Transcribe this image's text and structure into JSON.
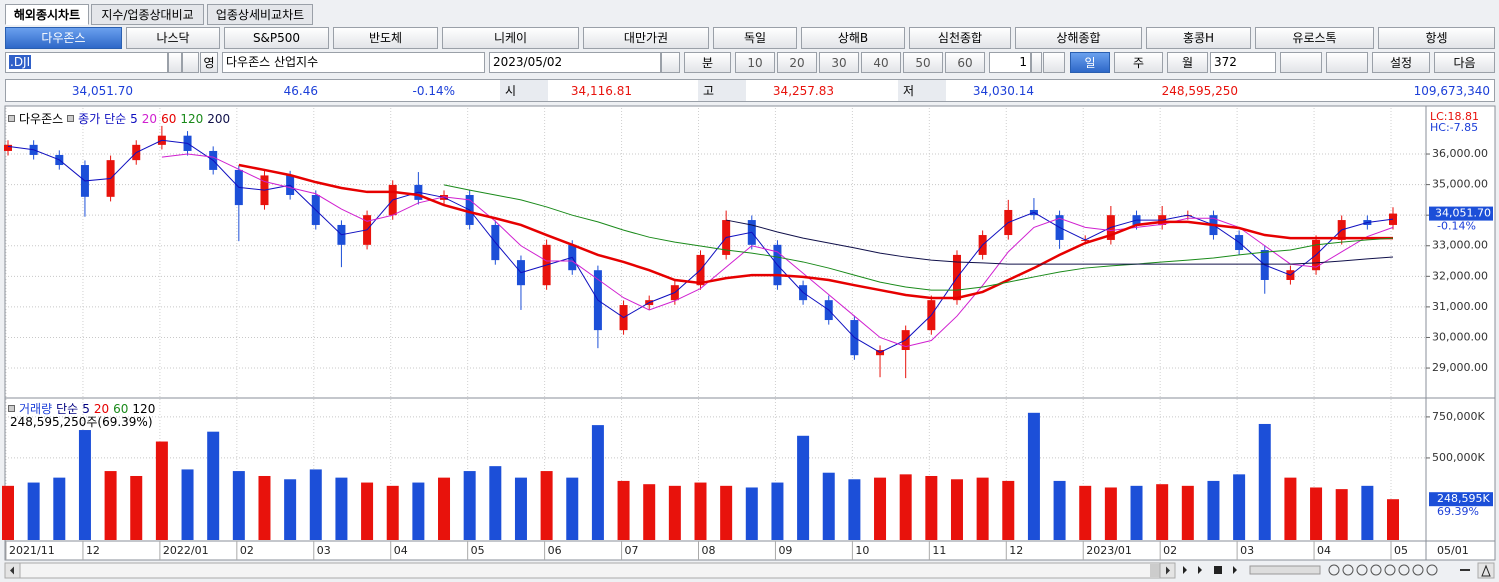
{
  "tabs": [
    "해외종시차트",
    "지수/업종상대비교",
    "업종상세비교차트"
  ],
  "markets": [
    "다우존스",
    "나스닥",
    "S&P500",
    "반도체",
    "니케이",
    "대만가권",
    "독일",
    "상해B",
    "심천종합",
    "상해종합",
    "홍콩H",
    "유로스톡",
    "항셍"
  ],
  "toolbar": {
    "symbol": ".DJI",
    "lang_button": "영",
    "symbol_name": "다우존스 산업지수",
    "date": "2023/05/02",
    "minute": "분",
    "minute_periods": [
      "10",
      "20",
      "30",
      "40",
      "50",
      "60"
    ],
    "unit_count": "1",
    "periods": [
      "일",
      "주",
      "월"
    ],
    "bar_count": "372",
    "settings": "설정",
    "next": "다음"
  },
  "quote": {
    "last": "34,051.70",
    "change": "46.46",
    "change_pct": "-0.14%",
    "open_label": "시",
    "open": "34,116.81",
    "high_label": "고",
    "high": "34,257.83",
    "low_label": "저",
    "low": "34,030.14",
    "volume": "248,595,250",
    "amount": "109,673,340"
  },
  "chart_data": [
    {
      "type": "candlestick",
      "name": "다우존스",
      "indicator_label": "종가 단순",
      "categories": [
        "2021/11",
        null,
        null,
        "12",
        null,
        null,
        "2022/01",
        null,
        null,
        "02",
        null,
        null,
        "03",
        null,
        null,
        "04",
        null,
        null,
        "05",
        null,
        null,
        "06",
        null,
        null,
        "07",
        null,
        null,
        "08",
        null,
        null,
        "09",
        null,
        null,
        "10",
        null,
        null,
        "11",
        null,
        null,
        "12",
        null,
        null,
        "2023/01",
        null,
        null,
        "02",
        null,
        null,
        "03",
        null,
        null,
        "04",
        null,
        null,
        "05"
      ],
      "extra_x_label": "05/01",
      "open": [
        36100,
        36300,
        35970,
        35640,
        34600,
        35800,
        36300,
        36600,
        36100,
        35480,
        34330,
        35300,
        34660,
        33680,
        33030,
        34000,
        34990,
        34500,
        34660,
        33680,
        32530,
        31710,
        33030,
        32200,
        30240,
        31060,
        31220,
        31710,
        32700,
        33840,
        33030,
        31710,
        31220,
        30570,
        29420,
        29590,
        30240,
        31220,
        32700,
        33350,
        34170,
        34000,
        33190,
        33190,
        34000,
        33680,
        34000,
        34000,
        33350,
        32860,
        31880,
        32200,
        33190,
        33840,
        33680
      ],
      "high": [
        36450,
        36450,
        36120,
        35790,
        35950,
        36450,
        36920,
        36750,
        36250,
        35630,
        35450,
        35450,
        34810,
        33830,
        34150,
        35140,
        35410,
        34810,
        34810,
        33830,
        32680,
        33200,
        33180,
        32350,
        31210,
        31370,
        31860,
        32850,
        34150,
        33990,
        33180,
        31860,
        31370,
        30720,
        29740,
        30390,
        31370,
        32850,
        33500,
        34500,
        34560,
        34150,
        33340,
        34300,
        34150,
        34300,
        34150,
        34150,
        33500,
        33010,
        32350,
        33340,
        33990,
        33990,
        34257.83
      ],
      "low": [
        35950,
        35820,
        35490,
        33950,
        34450,
        35650,
        36150,
        35950,
        35330,
        33150,
        34180,
        34510,
        33530,
        32300,
        32880,
        33850,
        34350,
        34350,
        33530,
        32380,
        30900,
        31560,
        32050,
        29650,
        30090,
        30910,
        31070,
        31560,
        32550,
        32880,
        31560,
        31070,
        30420,
        29270,
        28700,
        28670,
        30090,
        31070,
        32550,
        33200,
        33850,
        32900,
        33040,
        33040,
        33530,
        33530,
        33850,
        33200,
        32710,
        31430,
        31730,
        32050,
        33040,
        33530,
        33530
      ],
      "close": [
        36300,
        35970,
        35640,
        34600,
        35800,
        36300,
        36600,
        36100,
        35480,
        34330,
        35300,
        34660,
        33680,
        33030,
        34000,
        34990,
        34500,
        34660,
        33680,
        32530,
        31710,
        33030,
        32200,
        30240,
        31060,
        31220,
        31710,
        32700,
        33840,
        33030,
        31710,
        31220,
        30570,
        29420,
        29590,
        30240,
        31220,
        32700,
        33350,
        34170,
        34000,
        33190,
        33190,
        34000,
        33680,
        34000,
        34000,
        33350,
        32860,
        31880,
        32200,
        33190,
        33840,
        33680,
        34051.7
      ],
      "up_color": "#e8120c",
      "down_color": "#1c4fd8",
      "series": [
        {
          "name": "5",
          "color": "#1010c0",
          "values": [
            36250,
            36140,
            35810,
            35120,
            35200,
            36050,
            36450,
            36350,
            35790,
            34910,
            34820,
            34980,
            34170,
            33360,
            33520,
            34500,
            34750,
            34580,
            34170,
            33110,
            32120,
            32370,
            32620,
            31220,
            30650,
            31140,
            31470,
            32210,
            33270,
            33440,
            32370,
            31470,
            30900,
            30000,
            29510,
            29920,
            30730,
            31960,
            33030,
            33760,
            34090,
            33600,
            33190,
            33600,
            33840,
            33840,
            34000,
            33680,
            33110,
            32370,
            32040,
            32700,
            33520,
            33760,
            33870
          ]
        },
        {
          "name": "20",
          "color": "#d020d0",
          "values": [
            null,
            null,
            null,
            null,
            null,
            null,
            35900,
            36000,
            35900,
            35500,
            35100,
            34900,
            34700,
            34200,
            33800,
            34000,
            34400,
            34600,
            34500,
            33800,
            33000,
            32500,
            32500,
            31900,
            31300,
            30900,
            31200,
            31600,
            32300,
            33000,
            32800,
            32100,
            31400,
            30700,
            30000,
            29700,
            29900,
            30700,
            31700,
            32800,
            33600,
            33900,
            33600,
            33500,
            33600,
            33700,
            33900,
            33900,
            33600,
            33000,
            32400,
            32300,
            32800,
            33300,
            33600
          ]
        },
        {
          "name": "60",
          "color": "#e60000",
          "values": [
            null,
            null,
            null,
            null,
            null,
            null,
            null,
            null,
            null,
            35640,
            35480,
            35310,
            35080,
            34890,
            34760,
            34760,
            34660,
            34330,
            34100,
            33900,
            33680,
            33350,
            33030,
            32700,
            32470,
            32200,
            31880,
            31780,
            31940,
            32040,
            32040,
            31980,
            31880,
            31710,
            31550,
            31390,
            31290,
            31290,
            31490,
            31880,
            32270,
            32700,
            33090,
            33350,
            33680,
            33780,
            33780,
            33680,
            33580,
            33350,
            33250,
            33250,
            33250,
            33250,
            33250
          ]
        },
        {
          "name": "120",
          "color": "#1a8a1a",
          "values": [
            null,
            null,
            null,
            null,
            null,
            null,
            null,
            null,
            null,
            null,
            null,
            null,
            null,
            null,
            null,
            null,
            null,
            34990,
            34820,
            34660,
            34500,
            34270,
            34000,
            33780,
            33510,
            33280,
            33120,
            32990,
            32860,
            32760,
            32630,
            32470,
            32270,
            32040,
            31810,
            31650,
            31550,
            31550,
            31650,
            31810,
            31980,
            32140,
            32270,
            32340,
            32400,
            32470,
            32530,
            32600,
            32700,
            32790,
            32860,
            33030,
            33120,
            33190,
            33250
          ]
        },
        {
          "name": "200",
          "color": "#10104a",
          "values": [
            null,
            null,
            null,
            null,
            null,
            null,
            null,
            null,
            null,
            null,
            null,
            null,
            null,
            null,
            null,
            null,
            null,
            null,
            null,
            null,
            null,
            null,
            null,
            null,
            null,
            null,
            null,
            null,
            33840,
            33680,
            33450,
            33250,
            33090,
            32930,
            32760,
            32630,
            32530,
            32470,
            32440,
            32400,
            32400,
            32400,
            32400,
            32400,
            32400,
            32400,
            32400,
            32400,
            32400,
            32400,
            32400,
            32440,
            32500,
            32570,
            32630
          ]
        }
      ],
      "ylim": [
        28020,
        37440
      ],
      "yticks": [
        {
          "value": 29000,
          "label": "29,000.00"
        },
        {
          "value": 30000,
          "label": "30,000.00"
        },
        {
          "value": 31000,
          "label": "31,000.00"
        },
        {
          "value": 32000,
          "label": "32,000.00"
        },
        {
          "value": 33000,
          "label": "33,000.00"
        },
        {
          "value": 34000,
          "label": "34,000.00"
        },
        {
          "value": 35000,
          "label": "35,000.00"
        },
        {
          "value": 36000,
          "label": "36,000.00"
        }
      ],
      "grid": true,
      "last_value_label": "34,051.70",
      "last_change_label": "-0.14%",
      "lc_label": "LC:18.81",
      "hc_label": "HC:-7.85"
    },
    {
      "type": "bar",
      "name": "거래량",
      "indicator_label": "단순",
      "legend": [
        {
          "name": "5",
          "color": "#000080"
        },
        {
          "name": "20",
          "color": "#e60000"
        },
        {
          "name": "60",
          "color": "#1a8a1a"
        },
        {
          "name": "120",
          "color": "#000000"
        }
      ],
      "status": "248,595,250주(69.39%)",
      "values": [
        330000,
        350000,
        380000,
        670000,
        420000,
        390000,
        600000,
        430000,
        660000,
        420000,
        390000,
        370000,
        430000,
        380000,
        350000,
        330000,
        350000,
        380000,
        420000,
        450000,
        380000,
        420000,
        380000,
        700000,
        360000,
        340000,
        330000,
        350000,
        330000,
        320000,
        350000,
        635000,
        410000,
        370000,
        380000,
        400000,
        390000,
        370000,
        380000,
        360000,
        775000,
        360000,
        330000,
        320000,
        330000,
        340000,
        330000,
        360000,
        400000,
        707000,
        380000,
        320000,
        310000,
        330000,
        248595
      ],
      "ylim": [
        0,
        853000
      ],
      "yticks": [
        {
          "value": 500000,
          "label": "500,000K"
        },
        {
          "value": 750000,
          "label": "750,000K"
        }
      ],
      "grid": true,
      "last_value_label": "248,595K",
      "last_pct_label": "69.39%"
    }
  ]
}
